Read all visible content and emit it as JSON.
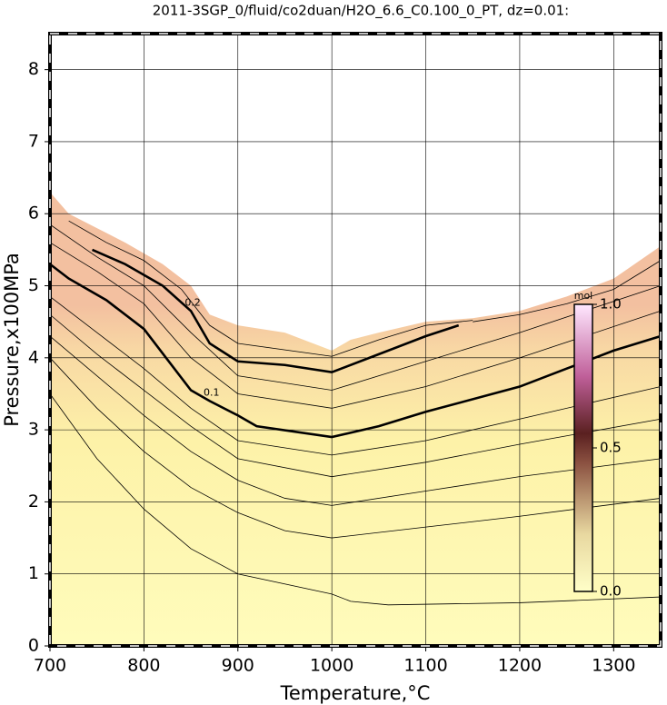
{
  "chart_data": {
    "type": "contour",
    "title": "2011-3SGP_0/fluid/co2duan/H2O_6.6_C0.100_0_PT, dz=0.01:",
    "xlabel": "Temperature,°C",
    "ylabel": "Pressure,x100MPa",
    "xlim": [
      700,
      1350
    ],
    "ylim": [
      0,
      8.5
    ],
    "xticks": [
      700,
      800,
      900,
      1000,
      1100,
      1200,
      1300
    ],
    "yticks": [
      0,
      1,
      2,
      3,
      4,
      5,
      6,
      7,
      8
    ],
    "grid": true,
    "boundary": {
      "x": [
        700,
        720,
        750,
        780,
        820,
        850,
        870,
        900,
        950,
        1000,
        1020,
        1050,
        1100,
        1150,
        1200,
        1250,
        1300,
        1350
      ],
      "y": [
        6.3,
        6.0,
        5.8,
        5.6,
        5.3,
        5.0,
        4.6,
        4.45,
        4.35,
        4.1,
        4.25,
        4.35,
        4.5,
        4.55,
        4.65,
        4.85,
        5.1,
        5.55
      ]
    },
    "contours": [
      {
        "x": [
          700,
          750,
          800,
          850,
          900,
          1000,
          1020,
          1060,
          1200,
          1350
        ],
        "y": [
          3.5,
          2.6,
          1.9,
          1.35,
          1.0,
          0.72,
          0.62,
          0.57,
          0.6,
          0.68
        ]
      },
      {
        "x": [
          700,
          750,
          800,
          850,
          900,
          950,
          1000,
          1100,
          1200,
          1350
        ],
        "y": [
          4.0,
          3.3,
          2.7,
          2.2,
          1.85,
          1.6,
          1.5,
          1.65,
          1.8,
          2.05
        ]
      },
      {
        "x": [
          700,
          750,
          800,
          850,
          900,
          950,
          1000,
          1100,
          1200,
          1350
        ],
        "y": [
          4.3,
          3.75,
          3.2,
          2.7,
          2.3,
          2.05,
          1.95,
          2.15,
          2.35,
          2.6
        ]
      },
      {
        "x": [
          700,
          750,
          800,
          850,
          900,
          1000,
          1100,
          1200,
          1350
        ],
        "y": [
          4.6,
          4.05,
          3.55,
          3.05,
          2.6,
          2.35,
          2.55,
          2.8,
          3.15
        ]
      },
      {
        "x": [
          700,
          750,
          800,
          850,
          900,
          1000,
          1100,
          1200,
          1350
        ],
        "y": [
          4.85,
          4.35,
          3.85,
          3.3,
          2.85,
          2.65,
          2.85,
          3.15,
          3.6
        ]
      },
      {
        "label": "0.1",
        "x": [
          700,
          720,
          760,
          800,
          850,
          870,
          900,
          920,
          1000,
          1050,
          1100,
          1200,
          1250,
          1300,
          1350
        ],
        "y": [
          5.3,
          5.1,
          4.8,
          4.4,
          3.55,
          3.4,
          3.2,
          3.05,
          2.9,
          3.05,
          3.25,
          3.6,
          3.85,
          4.1,
          4.3
        ]
      },
      {
        "x": [
          700,
          750,
          800,
          850,
          900,
          1000,
          1100,
          1200,
          1350
        ],
        "y": [
          5.6,
          5.2,
          4.75,
          4.0,
          3.5,
          3.3,
          3.6,
          4.0,
          4.65
        ]
      },
      {
        "x": [
          700,
          750,
          800,
          850,
          900,
          1000,
          1100,
          1200,
          1350
        ],
        "y": [
          5.85,
          5.4,
          5.0,
          4.35,
          3.75,
          3.55,
          3.95,
          4.35,
          5.0
        ]
      },
      {
        "label": "0.2",
        "x": [
          745,
          780,
          820,
          850,
          870,
          900,
          950,
          1000,
          1050,
          1100,
          1135
        ],
        "y": [
          5.5,
          5.3,
          5.0,
          4.65,
          4.2,
          3.95,
          3.9,
          3.8,
          4.05,
          4.3,
          4.45
        ]
      },
      {
        "x": [
          720,
          760,
          800,
          840,
          870,
          900,
          1000,
          1050,
          1100,
          1150
        ],
        "y": [
          5.9,
          5.6,
          5.35,
          4.95,
          4.45,
          4.2,
          4.02,
          4.25,
          4.45,
          4.52
        ]
      },
      {
        "x": [
          1150,
          1200,
          1250,
          1300,
          1350
        ],
        "y": [
          4.5,
          4.6,
          4.75,
          4.95,
          5.35
        ]
      }
    ],
    "colorbar": {
      "label": "mol",
      "lim": [
        0,
        1
      ],
      "ticks": [
        {
          "value": 0,
          "label": "0.0"
        },
        {
          "value": 0.5,
          "label": "0.5"
        },
        {
          "value": 1,
          "label": "1.0"
        }
      ]
    }
  }
}
